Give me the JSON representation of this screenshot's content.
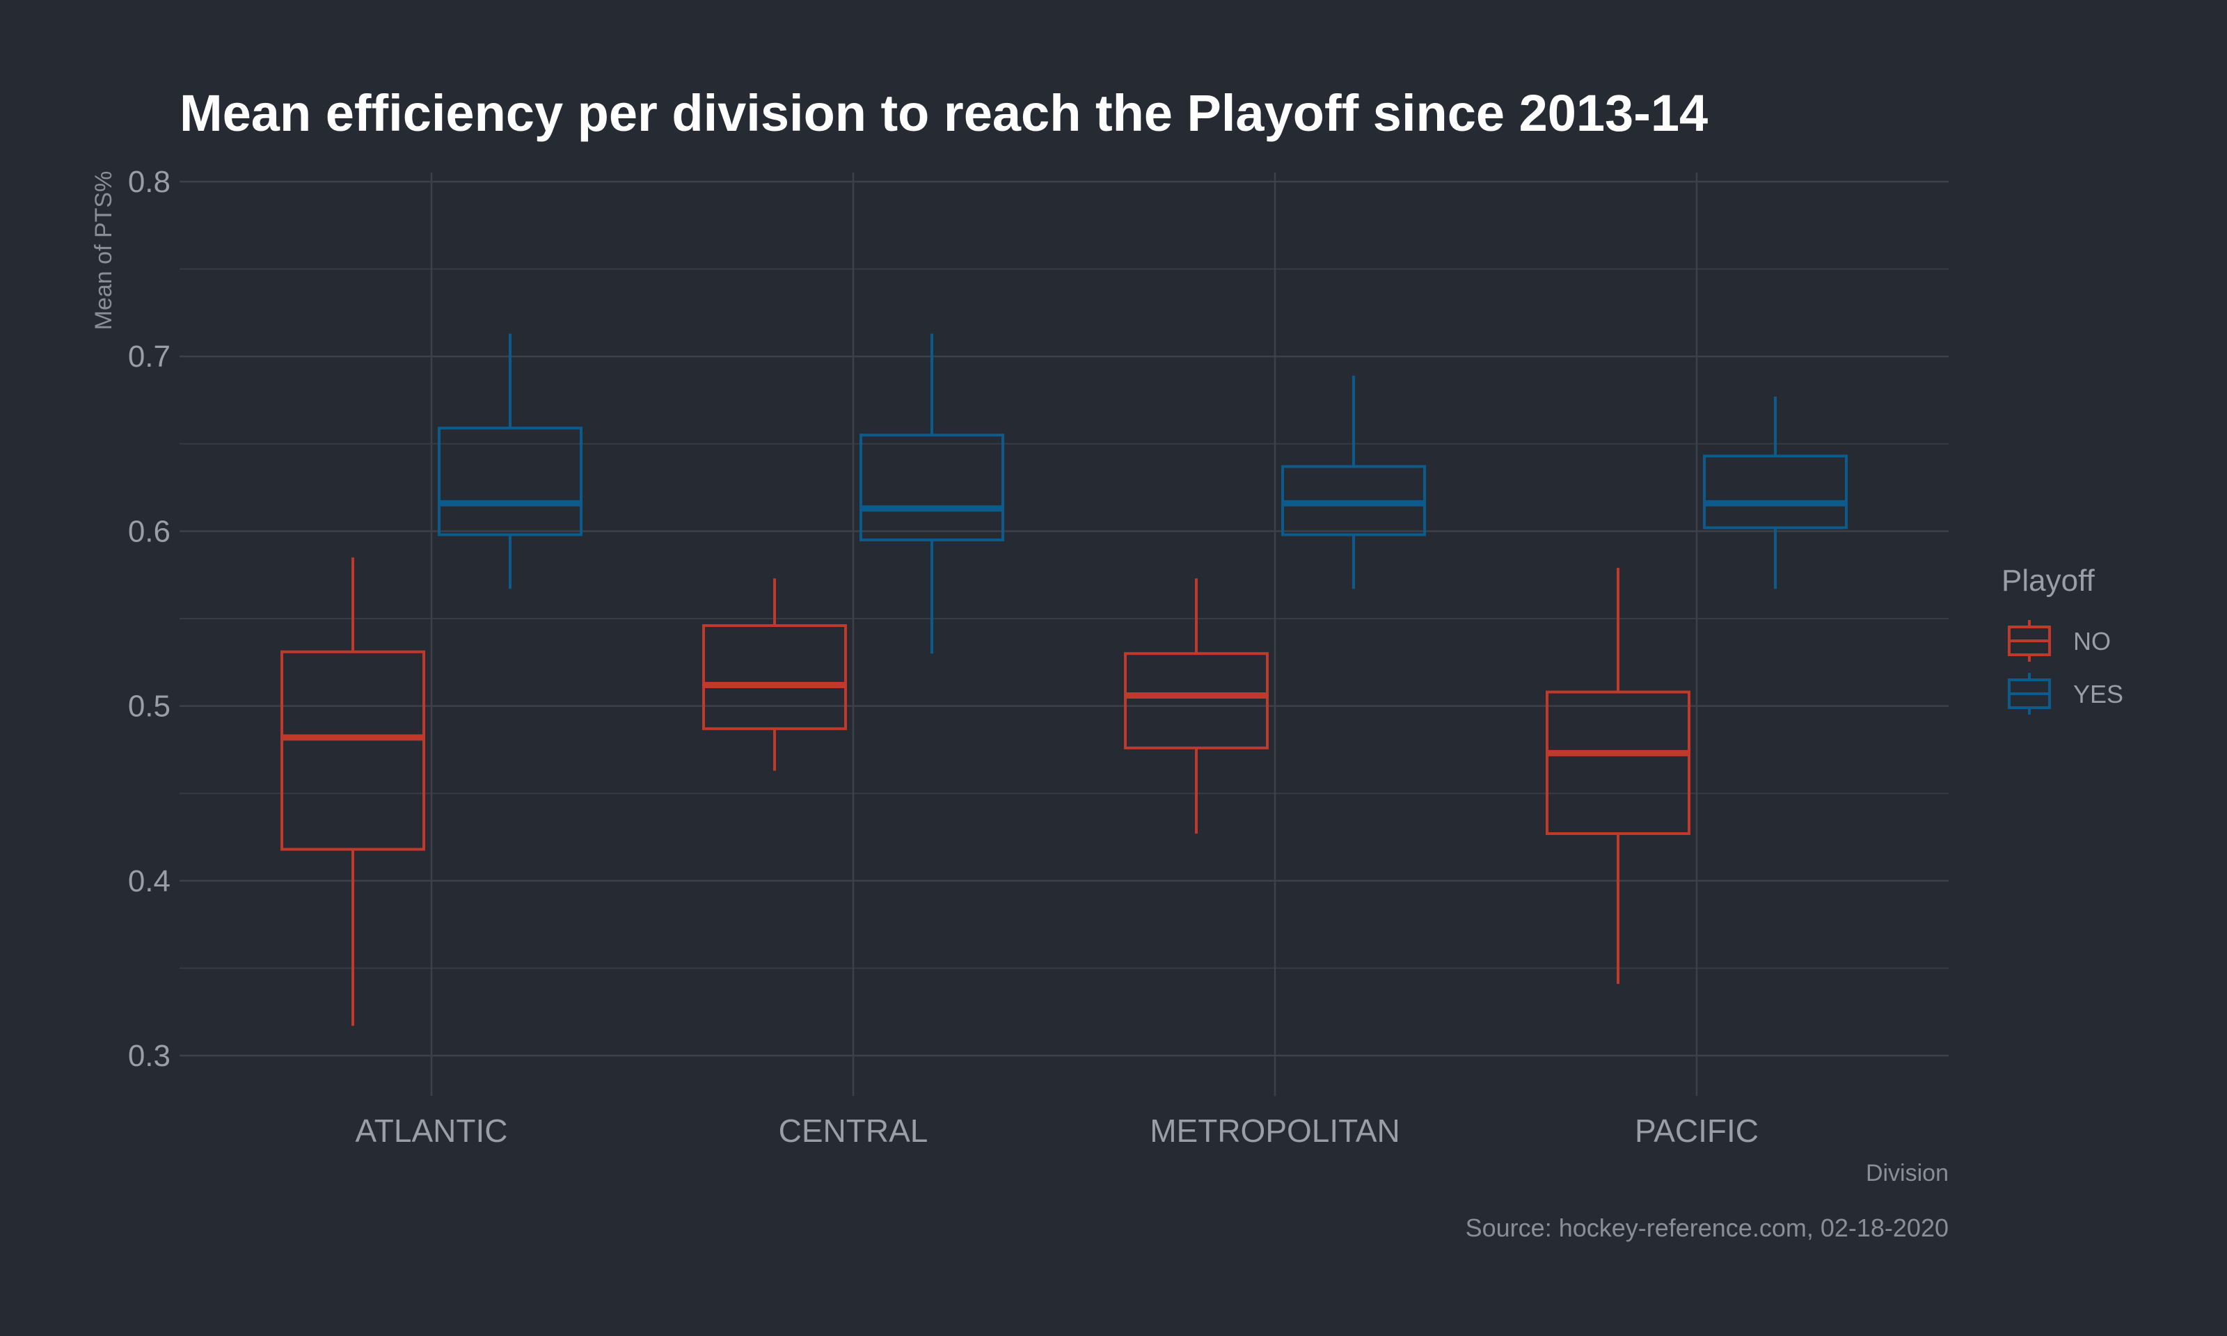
{
  "chart_data": {
    "type": "boxplot",
    "title": "Mean efficiency per division to reach the Playoff since 2013-14",
    "xlabel": "Division",
    "ylabel": "Mean of PTS%",
    "ylim": [
      0.27,
      0.8
    ],
    "yticks": [
      0.3,
      0.4,
      0.5,
      0.6,
      0.7,
      0.8
    ],
    "ytick_labels": [
      "0.3",
      "0.4",
      "0.5",
      "0.6",
      "0.7",
      "0.8"
    ],
    "categories": [
      "ATLANTIC",
      "CENTRAL",
      "METROPOLITAN",
      "PACIFIC"
    ],
    "grid": true,
    "legend": {
      "title": "Playoff",
      "position": "right"
    },
    "caption": "Source: hockey-reference.com, 02-18-2020",
    "series": [
      {
        "name": "NO",
        "color": "#c0392b",
        "boxes": [
          {
            "min": 0.317,
            "q1": 0.418,
            "median": 0.482,
            "q3": 0.531,
            "max": 0.585
          },
          {
            "min": 0.463,
            "q1": 0.487,
            "median": 0.512,
            "q3": 0.546,
            "max": 0.573
          },
          {
            "min": 0.427,
            "q1": 0.476,
            "median": 0.506,
            "q3": 0.53,
            "max": 0.573
          },
          {
            "min": 0.341,
            "q1": 0.427,
            "median": 0.473,
            "q3": 0.508,
            "max": 0.579
          }
        ]
      },
      {
        "name": "YES",
        "color": "#0b5c8c",
        "boxes": [
          {
            "min": 0.567,
            "q1": 0.598,
            "median": 0.616,
            "q3": 0.659,
            "max": 0.713
          },
          {
            "min": 0.53,
            "q1": 0.595,
            "median": 0.613,
            "q3": 0.655,
            "max": 0.713
          },
          {
            "min": 0.567,
            "q1": 0.598,
            "median": 0.616,
            "q3": 0.637,
            "max": 0.689
          },
          {
            "min": 0.567,
            "q1": 0.602,
            "median": 0.616,
            "q3": 0.643,
            "max": 0.677
          }
        ]
      }
    ]
  }
}
